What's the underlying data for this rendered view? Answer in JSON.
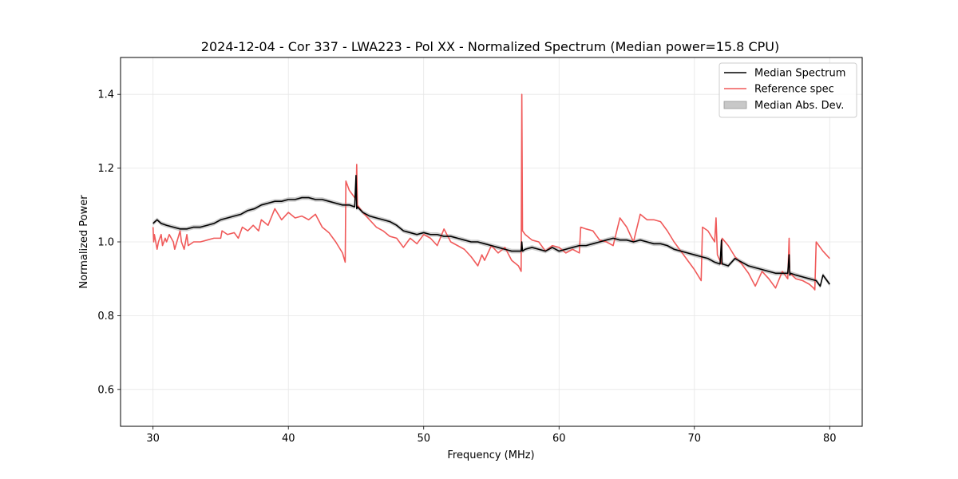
{
  "chart_data": {
    "type": "line",
    "title": "2024-12-04 - Cor 337 - LWA223 - Pol XX - Normalized Spectrum (Median power=15.8 CPU)",
    "xlabel": "Frequency (MHz)",
    "ylabel": "Normalized Power",
    "xlim": [
      27.6,
      82.4
    ],
    "ylim": [
      0.5,
      1.5
    ],
    "xticks": [
      30,
      40,
      50,
      60,
      70,
      80
    ],
    "yticks": [
      0.6,
      0.8,
      1.0,
      1.2,
      1.4
    ],
    "xtick_labels": [
      "30",
      "40",
      "50",
      "60",
      "70",
      "80"
    ],
    "ytick_labels": [
      "0.6",
      "0.8",
      "1.0",
      "1.2",
      "1.4"
    ],
    "grid": true,
    "legend_position": "top-right",
    "legend": [
      {
        "label": "Median Spectrum",
        "kind": "line",
        "color": "#000000"
      },
      {
        "label": "Reference spec",
        "kind": "line",
        "color": "#f05a5a"
      },
      {
        "label": "Median Abs. Dev.",
        "kind": "band",
        "color": "#c8c8c8"
      }
    ],
    "series": [
      {
        "name": "Median Spectrum",
        "color": "#000000",
        "x": [
          30.0,
          30.3,
          30.6,
          31.0,
          31.5,
          32.0,
          32.5,
          33.0,
          33.5,
          34.0,
          34.5,
          35.0,
          35.5,
          36.0,
          36.5,
          37.0,
          37.5,
          38.0,
          38.5,
          39.0,
          39.5,
          40.0,
          40.5,
          41.0,
          41.5,
          42.0,
          42.5,
          43.0,
          43.5,
          44.0,
          44.5,
          44.9,
          45.0,
          45.05,
          45.1,
          45.5,
          46.0,
          46.5,
          47.0,
          47.5,
          48.0,
          48.5,
          49.0,
          49.5,
          50.0,
          50.5,
          51.0,
          51.5,
          52.0,
          52.5,
          53.0,
          53.5,
          54.0,
          54.5,
          55.0,
          55.5,
          56.0,
          56.5,
          57.0,
          57.2,
          57.25,
          57.3,
          57.5,
          58.0,
          58.5,
          59.0,
          59.5,
          60.0,
          60.5,
          61.0,
          61.5,
          62.0,
          62.5,
          63.0,
          63.5,
          64.0,
          64.5,
          65.0,
          65.5,
          66.0,
          66.5,
          67.0,
          67.5,
          68.0,
          68.5,
          69.0,
          69.5,
          70.0,
          70.5,
          71.0,
          71.5,
          71.9,
          72.0,
          72.05,
          72.1,
          72.5,
          73.0,
          73.5,
          74.0,
          74.5,
          75.0,
          75.5,
          76.0,
          76.5,
          76.9,
          77.0,
          77.05,
          77.1,
          77.5,
          78.0,
          78.5,
          79.0,
          79.3,
          79.5,
          79.8,
          80.0
        ],
        "values": [
          1.05,
          1.06,
          1.05,
          1.045,
          1.04,
          1.035,
          1.035,
          1.04,
          1.04,
          1.045,
          1.05,
          1.06,
          1.065,
          1.07,
          1.075,
          1.085,
          1.09,
          1.1,
          1.105,
          1.11,
          1.11,
          1.115,
          1.115,
          1.12,
          1.12,
          1.115,
          1.115,
          1.11,
          1.105,
          1.1,
          1.1,
          1.095,
          1.18,
          1.09,
          1.095,
          1.08,
          1.07,
          1.065,
          1.06,
          1.055,
          1.045,
          1.03,
          1.025,
          1.02,
          1.025,
          1.02,
          1.02,
          1.015,
          1.015,
          1.01,
          1.005,
          1.0,
          1.0,
          0.995,
          0.99,
          0.985,
          0.98,
          0.975,
          0.975,
          0.975,
          1.0,
          0.975,
          0.98,
          0.985,
          0.98,
          0.975,
          0.985,
          0.975,
          0.98,
          0.985,
          0.99,
          0.99,
          0.995,
          1.0,
          1.005,
          1.01,
          1.005,
          1.005,
          1.0,
          1.005,
          1.0,
          0.995,
          0.995,
          0.99,
          0.98,
          0.975,
          0.97,
          0.965,
          0.96,
          0.955,
          0.945,
          0.94,
          1.005,
          0.94,
          0.94,
          0.935,
          0.955,
          0.945,
          0.935,
          0.93,
          0.925,
          0.92,
          0.915,
          0.915,
          0.915,
          0.965,
          0.91,
          0.915,
          0.91,
          0.905,
          0.9,
          0.895,
          0.88,
          0.91,
          0.895,
          0.885
        ]
      },
      {
        "name": "Reference spec",
        "color": "#f05a5a",
        "x": [
          30.0,
          30.05,
          30.1,
          30.3,
          30.4,
          30.6,
          30.7,
          30.9,
          31.0,
          31.2,
          31.5,
          31.6,
          32.0,
          32.1,
          32.3,
          32.5,
          32.6,
          33.0,
          33.5,
          34.0,
          34.5,
          35.0,
          35.1,
          35.5,
          36.0,
          36.3,
          36.6,
          37.0,
          37.4,
          37.8,
          38.0,
          38.5,
          39.0,
          39.5,
          40.0,
          40.5,
          41.0,
          41.5,
          42.0,
          42.5,
          43.0,
          43.5,
          44.0,
          44.2,
          44.25,
          44.5,
          45.0,
          45.05,
          45.1,
          45.5,
          46.0,
          46.5,
          47.0,
          47.5,
          48.0,
          48.5,
          49.0,
          49.5,
          50.0,
          50.5,
          51.0,
          51.5,
          52.0,
          52.5,
          53.0,
          53.5,
          54.0,
          54.3,
          54.5,
          55.0,
          55.5,
          56.0,
          56.5,
          57.0,
          57.2,
          57.25,
          57.3,
          57.5,
          58.0,
          58.5,
          59.0,
          59.5,
          60.0,
          60.5,
          61.0,
          61.5,
          61.6,
          62.0,
          62.5,
          63.0,
          63.5,
          64.0,
          64.5,
          65.0,
          65.5,
          66.0,
          66.5,
          67.0,
          67.5,
          68.0,
          68.5,
          69.0,
          69.5,
          70.0,
          70.5,
          70.6,
          71.0,
          71.5,
          71.6,
          71.7,
          72.0,
          72.05,
          72.5,
          73.0,
          73.5,
          74.0,
          74.5,
          75.0,
          75.5,
          76.0,
          76.5,
          76.9,
          77.0,
          77.05,
          77.5,
          78.0,
          78.5,
          78.8,
          78.9,
          79.0,
          79.5,
          80.0
        ],
        "values": [
          1.04,
          1.0,
          1.02,
          0.98,
          1.0,
          1.02,
          0.99,
          1.01,
          1.0,
          1.02,
          1.0,
          0.98,
          1.03,
          1.0,
          0.98,
          1.02,
          0.99,
          1.0,
          1.0,
          1.005,
          1.01,
          1.01,
          1.03,
          1.02,
          1.025,
          1.01,
          1.04,
          1.03,
          1.045,
          1.03,
          1.06,
          1.045,
          1.09,
          1.06,
          1.08,
          1.065,
          1.07,
          1.06,
          1.075,
          1.04,
          1.025,
          1.0,
          0.97,
          0.945,
          1.165,
          1.14,
          1.115,
          1.21,
          1.1,
          1.08,
          1.06,
          1.04,
          1.03,
          1.015,
          1.01,
          0.985,
          1.01,
          0.995,
          1.02,
          1.01,
          0.99,
          1.035,
          1.0,
          0.99,
          0.98,
          0.96,
          0.935,
          0.965,
          0.95,
          0.99,
          0.97,
          0.985,
          0.95,
          0.935,
          0.92,
          1.4,
          1.03,
          1.02,
          1.005,
          1.0,
          0.975,
          0.99,
          0.985,
          0.97,
          0.98,
          0.97,
          1.04,
          1.035,
          1.03,
          1.005,
          1.0,
          0.99,
          1.065,
          1.04,
          1.0,
          1.075,
          1.06,
          1.06,
          1.055,
          1.03,
          1.0,
          0.975,
          0.95,
          0.925,
          0.895,
          1.04,
          1.03,
          1.0,
          1.065,
          0.965,
          0.94,
          1.01,
          0.99,
          0.96,
          0.94,
          0.915,
          0.88,
          0.92,
          0.9,
          0.875,
          0.92,
          0.9,
          1.01,
          0.915,
          0.9,
          0.895,
          0.885,
          0.875,
          0.87,
          1.0,
          0.975,
          0.955
        ]
      }
    ]
  }
}
